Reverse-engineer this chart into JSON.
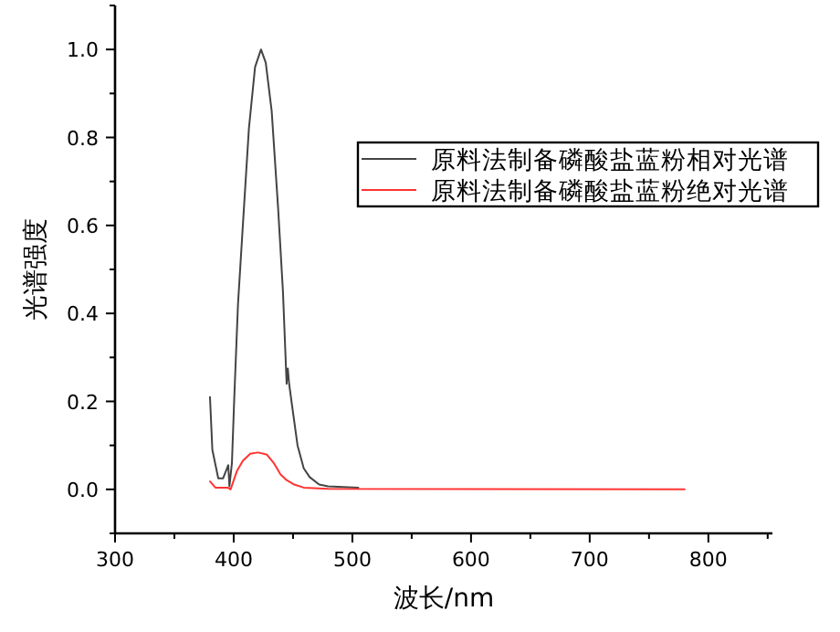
{
  "chart_data": {
    "type": "line",
    "xlabel": "波长/nm",
    "ylabel": "光谱强度",
    "xlim": [
      300,
      854
    ],
    "ylim": [
      -0.1,
      1.1
    ],
    "xticks": [
      300,
      400,
      500,
      600,
      700,
      800
    ],
    "yticks": [
      {
        "value": 0,
        "label": "0.0"
      },
      {
        "value": 0.2,
        "label": "0.2"
      },
      {
        "value": 0.4,
        "label": "0.4"
      },
      {
        "value": 0.6,
        "label": "0.6"
      },
      {
        "value": 0.8,
        "label": "0.8"
      },
      {
        "value": 1,
        "label": "1.0"
      }
    ],
    "grid": false,
    "legend": "top right",
    "marker": "none",
    "line_style": "solid",
    "series": [
      {
        "name": "原料法制备磷酸盐蓝粉相对光谱",
        "color": "#444444",
        "x": [
          380,
          382,
          387,
          391,
          395.4,
          396.4,
          398.5,
          400.5,
          403.6,
          407.7,
          412.8,
          418,
          423,
          427,
          432,
          437.4,
          441.5,
          444.6,
          445.6,
          446.7,
          448.7,
          453.8,
          459,
          464,
          472,
          479.5,
          505
        ],
        "values": [
          0.21,
          0.09,
          0.025,
          0.025,
          0.055,
          0.007,
          0.06,
          0.21,
          0.42,
          0.6,
          0.82,
          0.96,
          1.0,
          0.97,
          0.86,
          0.64,
          0.45,
          0.24,
          0.275,
          0.24,
          0.2,
          0.1,
          0.048,
          0.028,
          0.011,
          0.007,
          0.004
        ]
      },
      {
        "name": "原料法制备磷酸盐蓝粉绝对光谱",
        "color": "#ff3333",
        "x": [
          380,
          384.6,
          395,
          397.4,
          402.6,
          407.7,
          414,
          420.5,
          428,
          434,
          439.5,
          444.6,
          451,
          459,
          479.5,
          780
        ],
        "values": [
          0.018,
          0.004,
          0.004,
          0,
          0.041,
          0.065,
          0.081,
          0.084,
          0.079,
          0.059,
          0.034,
          0.021,
          0.011,
          0.004,
          0.001,
          0
        ]
      }
    ]
  }
}
